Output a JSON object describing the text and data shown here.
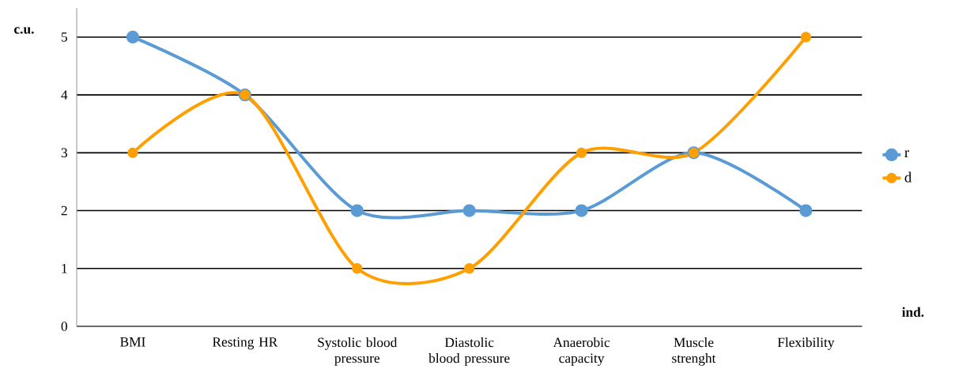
{
  "chart_data": {
    "type": "line",
    "xlabel": "ind.",
    "ylabel": "c.u.",
    "categories": [
      "BMI",
      "Resting HR",
      "Systolic blood pressure",
      "Diastolic blood pressure",
      "Anaerobic capacity",
      "Muscle strenght",
      "Flexibility"
    ],
    "series": [
      {
        "name": "r",
        "color": "#5b9bd5",
        "values": [
          5,
          4,
          2,
          2,
          2,
          3,
          2
        ]
      },
      {
        "name": "d",
        "color": "#ffa000",
        "values": [
          3,
          4,
          1,
          1,
          3,
          3,
          5
        ]
      }
    ],
    "ylim": [
      0,
      5.5
    ],
    "yticks": [
      0,
      1,
      2,
      3,
      4,
      5
    ],
    "grid": "y",
    "legend": "right",
    "marker": "circle"
  }
}
